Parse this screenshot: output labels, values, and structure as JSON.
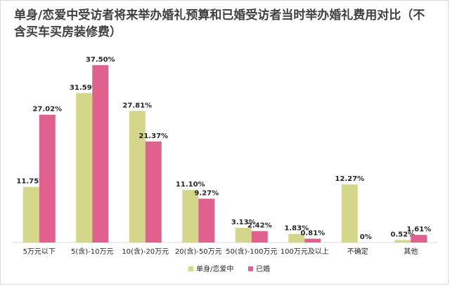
{
  "chart_data": {
    "type": "bar",
    "title": "单身/恋爱中受访者将来举办婚礼预算和已婚受访者当时举办婚礼费用对比（不含买车买房装修费）",
    "categories": [
      "5万元以下",
      "5(含)-10万元",
      "10(含)-20万元",
      "20(含)-50万元",
      "50(含)-100万元",
      "100万元及以上",
      "不确定",
      "其他"
    ],
    "series": [
      {
        "name": "单身/恋爱中",
        "color": "#d4d68a",
        "values": [
          11.75,
          31.59,
          27.81,
          11.1,
          3.13,
          1.83,
          12.27,
          0.52
        ],
        "labels": [
          "11.75%",
          "31.59%",
          "27.81%",
          "11.10%",
          "3.13%",
          "1.83%",
          "12.27%",
          "0.52%"
        ]
      },
      {
        "name": "已婚",
        "color": "#e0608e",
        "values": [
          27.02,
          37.5,
          21.37,
          9.27,
          2.42,
          0.81,
          0,
          1.61
        ],
        "labels": [
          "27.02%",
          "37.50%",
          "21.37%",
          "9.27%",
          "2.42%",
          "0.81%",
          "0%",
          "1.61%"
        ]
      }
    ],
    "xlabel": "",
    "ylabel": "",
    "ylim": [
      0,
      40
    ],
    "grid": false,
    "legend": "bottom-center"
  }
}
